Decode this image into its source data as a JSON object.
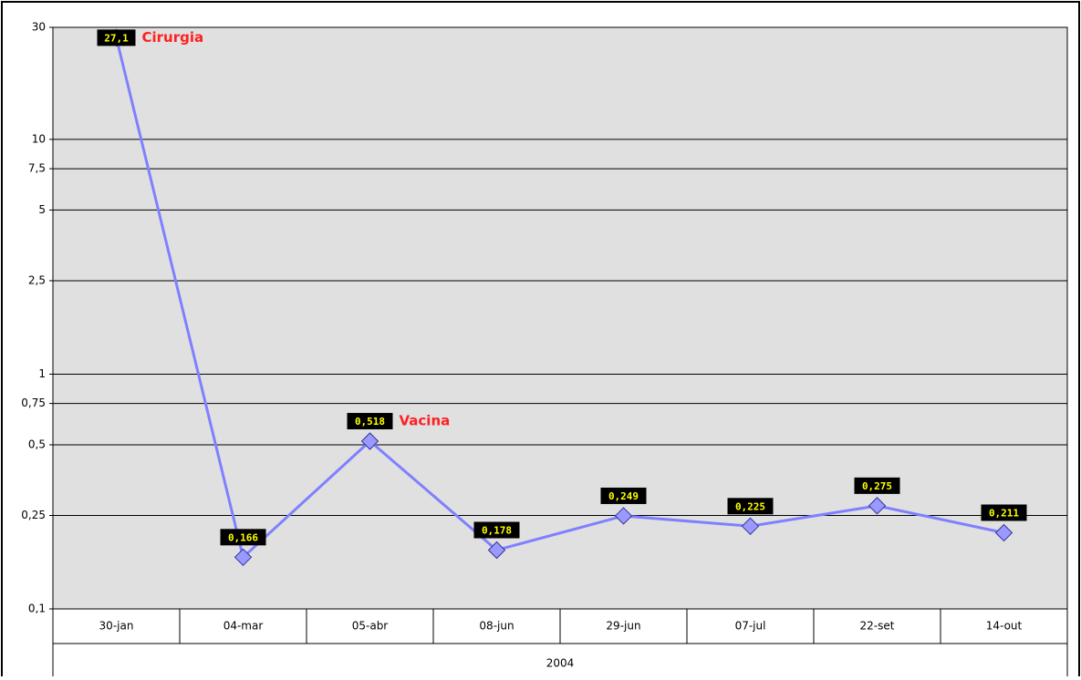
{
  "chart_data": {
    "type": "line",
    "categories": [
      "30-jan",
      "04-mar",
      "05-abr",
      "08-jun",
      "29-jun",
      "07-jul",
      "22-set",
      "14-out"
    ],
    "x_group_label": "2004",
    "series": [
      {
        "color": "#8080ff",
        "values": [
          27.1,
          0.166,
          0.518,
          0.178,
          0.249,
          0.225,
          0.275,
          0.211
        ],
        "value_labels": [
          "27,1",
          "0,166",
          "0,518",
          "0,178",
          "0,249",
          "0,225",
          "0,275",
          "0,211"
        ]
      }
    ],
    "point_annotations": [
      "Cirurgia",
      null,
      "Vacina",
      null,
      null,
      null,
      null,
      null
    ],
    "ylim": [
      0.1,
      30
    ],
    "yticks": [
      {
        "value": 0.1,
        "label": "0,1"
      },
      {
        "value": 0.25,
        "label": "0,25"
      },
      {
        "value": 0.5,
        "label": "0,5"
      },
      {
        "value": 0.75,
        "label": "0,75"
      },
      1,
      {
        "value": 2.5,
        "label": "2,5"
      },
      5,
      {
        "value": 7.5,
        "label": "7,5"
      },
      10,
      30
    ],
    "log_scale": true,
    "grid": true
  }
}
